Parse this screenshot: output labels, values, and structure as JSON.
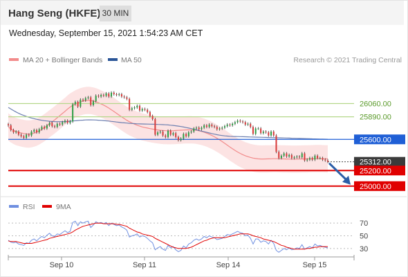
{
  "header": {
    "symbol": "Hang Seng (HKFE)",
    "timeframe": "30 MIN"
  },
  "timestamp": "Wednesday, September 15, 2021 1:54:23 AM CET",
  "colors": {
    "ma20": "#f28b8b",
    "band": "#fbd9d9",
    "ma50": "#6c7fb0",
    "resistance": "#b5d88b",
    "pivot": "#1f5fd6",
    "support": "#e00000",
    "arrow": "#2b5ea7",
    "candle": "#d73b3b",
    "rsi": "#6f8fe0",
    "rsi_ma": "#e00000"
  },
  "chart_data": [
    {
      "type": "candlestick",
      "legend": [
        {
          "name": "MA 20 + Bollinger Bands",
          "color": "#f28b8b"
        },
        {
          "name": "MA 50",
          "color": "#2a5597"
        }
      ],
      "credit": "Research © 2021 Trading Central",
      "ylim": [
        24900,
        26500
      ],
      "x_ticks": [
        "Sep 10",
        "Sep 11",
        "Sep 14",
        "Sep 15"
      ],
      "levels": [
        {
          "label": "26060.00",
          "value": 26060,
          "kind": "resistance"
        },
        {
          "label": "25890.00",
          "value": 25890,
          "kind": "resistance"
        },
        {
          "label": "25600.00",
          "value": 25600,
          "kind": "pivot"
        },
        {
          "label": "25312.00",
          "value": 25312,
          "kind": "last"
        },
        {
          "label": "25200.00",
          "value": 25200,
          "kind": "support"
        },
        {
          "label": "25000.00",
          "value": 25000,
          "kind": "support"
        }
      ],
      "close": [
        25780,
        25720,
        25690,
        25700,
        25660,
        25640,
        25620,
        25660,
        25650,
        25700,
        25720,
        25690,
        25730,
        25760,
        25740,
        25780,
        25810,
        25770,
        25760,
        25800,
        25790,
        25820,
        25840,
        25810,
        25830,
        26050,
        26080,
        26020,
        26110,
        26100,
        26130,
        26140,
        26040,
        26090,
        26160,
        26150,
        26170,
        26160,
        26190,
        26150,
        26200,
        26180,
        26170,
        26180,
        26150,
        26140,
        26120,
        25980,
        26000,
        26010,
        26030,
        25970,
        25990,
        25980,
        25950,
        25900,
        25860,
        25660,
        25690,
        25700,
        25650,
        25630,
        25710,
        25660,
        25680,
        25630,
        25590,
        25610,
        25670,
        25640,
        25690,
        25700,
        25740,
        25750,
        25730,
        25750,
        25780,
        25760,
        25790,
        25770,
        25760,
        25730,
        25740,
        25750,
        25770,
        25790,
        25780,
        25800,
        25820,
        25840,
        25830,
        25820,
        25790,
        25800,
        25760,
        25670,
        25740,
        25740,
        25680,
        25700,
        25690,
        25650,
        25700,
        25650,
        25440,
        25360,
        25390,
        25420,
        25380,
        25400,
        25360,
        25370,
        25380,
        25370,
        25420,
        25330,
        25340,
        25360,
        25340,
        25390,
        25360,
        25360,
        25340,
        25330,
        25312
      ],
      "ma20": [
        25760,
        25735,
        25715,
        25700,
        25690,
        25682,
        25675,
        25670,
        25668,
        25672,
        25680,
        25692,
        25708,
        25728,
        25750,
        25775,
        25800,
        25825,
        25850,
        25878,
        25905,
        25932,
        25960,
        25990,
        26015,
        26035,
        26055,
        26070,
        26082,
        26092,
        26098,
        26100,
        26098,
        26092,
        26082,
        26070,
        26055,
        26040,
        26022,
        26002,
        25980,
        25958,
        25935,
        25912,
        25888,
        25866,
        25845,
        25826,
        25810,
        25795,
        25782,
        25770,
        25760,
        25752,
        25745,
        25738,
        25732,
        25726,
        25721,
        25717,
        25714,
        25712,
        25711,
        25711,
        25712,
        25714,
        25716,
        25718,
        25720,
        25721,
        25722,
        25722,
        25720,
        25716,
        25710,
        25702,
        25692,
        25680,
        25666,
        25650,
        25633,
        25614,
        25594,
        25572,
        25549,
        25526,
        25502,
        25480,
        25458,
        25438,
        25420,
        25404,
        25390,
        25378,
        25368,
        25360,
        25354,
        25350,
        25348,
        25348,
        25349,
        25350,
        25351,
        25352,
        25352,
        25351,
        25350,
        25349,
        25348,
        25347,
        25346,
        25346,
        25346,
        25347,
        25348,
        25349,
        25350,
        25351,
        25352,
        25353,
        25353,
        25353,
        25352,
        25351,
        25350
      ],
      "ma50": [
        26010,
        25990,
        25970,
        25952,
        25935,
        25920,
        25907,
        25895,
        25884,
        25874,
        25866,
        25858,
        25851,
        25845,
        25840,
        25836,
        25832,
        25830,
        25828,
        25827,
        25827,
        25827,
        25828,
        25830,
        25833,
        25836,
        25839,
        25842,
        25845,
        25847,
        25849,
        25850,
        25850,
        25849,
        25848,
        25846,
        25844,
        25841,
        25838,
        25835,
        25831,
        25827,
        25823,
        25819,
        25815,
        25812,
        25809,
        25806,
        25804,
        25802,
        25800,
        25799,
        25798,
        25797,
        25796,
        25795,
        25794,
        25793,
        25792,
        25791,
        25789,
        25787,
        25785,
        25782,
        25779,
        25775,
        25770,
        25765,
        25759,
        25752,
        25745,
        25738,
        25730,
        25722,
        25714,
        25706,
        25698,
        25690,
        25682,
        25674,
        25667,
        25660,
        25654,
        25649,
        25645,
        25642,
        25640,
        25638,
        25637,
        25636,
        25635,
        25634,
        25633,
        25632,
        25631,
        25630,
        25629,
        25628,
        25627,
        25626,
        25625,
        25624,
        25623,
        25622,
        25621,
        25620,
        25619,
        25618,
        25617,
        25616,
        25615,
        25614,
        25613,
        25612,
        25611,
        25610,
        25609,
        25608,
        25607,
        25606,
        25605,
        25604,
        25603,
        25602,
        25601
      ],
      "bb_width": 175
    },
    {
      "type": "line",
      "legend": [
        {
          "name": "RSI",
          "color": "#6f8fe0"
        },
        {
          "name": "9MA",
          "color": "#e00000"
        }
      ],
      "ylim": [
        20,
        80
      ],
      "y_ticks": [
        70,
        50,
        30
      ],
      "series": [
        {
          "name": "RSI",
          "values": [
            43,
            40,
            39,
            40,
            37,
            36,
            35,
            39,
            38,
            43,
            45,
            42,
            46,
            49,
            47,
            51,
            54,
            50,
            49,
            53,
            52,
            55,
            58,
            55,
            57,
            71,
            73,
            66,
            72,
            70,
            72,
            73,
            63,
            67,
            72,
            70,
            71,
            69,
            71,
            66,
            70,
            68,
            66,
            67,
            64,
            62,
            59,
            48,
            50,
            51,
            53,
            48,
            50,
            49,
            46,
            42,
            39,
            28,
            31,
            33,
            29,
            27,
            35,
            31,
            33,
            28,
            25,
            27,
            34,
            31,
            37,
            39,
            43,
            45,
            43,
            45,
            49,
            47,
            50,
            48,
            47,
            44,
            45,
            46,
            49,
            52,
            51,
            53,
            55,
            57,
            55,
            54,
            50,
            51,
            46,
            37,
            45,
            45,
            40,
            42,
            41,
            37,
            43,
            38,
            27,
            24,
            27,
            30,
            28,
            31,
            28,
            29,
            31,
            30,
            36,
            29,
            31,
            33,
            31,
            37,
            34,
            35,
            33,
            32,
            31
          ]
        },
        {
          "name": "9MA",
          "values": [
            42,
            41,
            41,
            41,
            40,
            39,
            38,
            38,
            38,
            38,
            39,
            40,
            41,
            42,
            43,
            44,
            46,
            47,
            48,
            49,
            50,
            51,
            52,
            53,
            54,
            56,
            59,
            61,
            63,
            65,
            66,
            67,
            68,
            69,
            70,
            70,
            70,
            69,
            69,
            69,
            69,
            69,
            68,
            68,
            67,
            66,
            65,
            62,
            60,
            58,
            56,
            55,
            53,
            52,
            51,
            50,
            49,
            46,
            44,
            42,
            40,
            38,
            36,
            34,
            32,
            31,
            30,
            30,
            30,
            30,
            31,
            32,
            34,
            36,
            38,
            40,
            42,
            43,
            45,
            46,
            47,
            47,
            47,
            47,
            47,
            48,
            49,
            50,
            51,
            52,
            53,
            53,
            53,
            53,
            52,
            50,
            49,
            48,
            47,
            45,
            44,
            43,
            42,
            41,
            39,
            37,
            35,
            34,
            32,
            31,
            30,
            29,
            29,
            29,
            29,
            29,
            30,
            30,
            31,
            32,
            32,
            33,
            33,
            33,
            33
          ]
        }
      ]
    }
  ]
}
